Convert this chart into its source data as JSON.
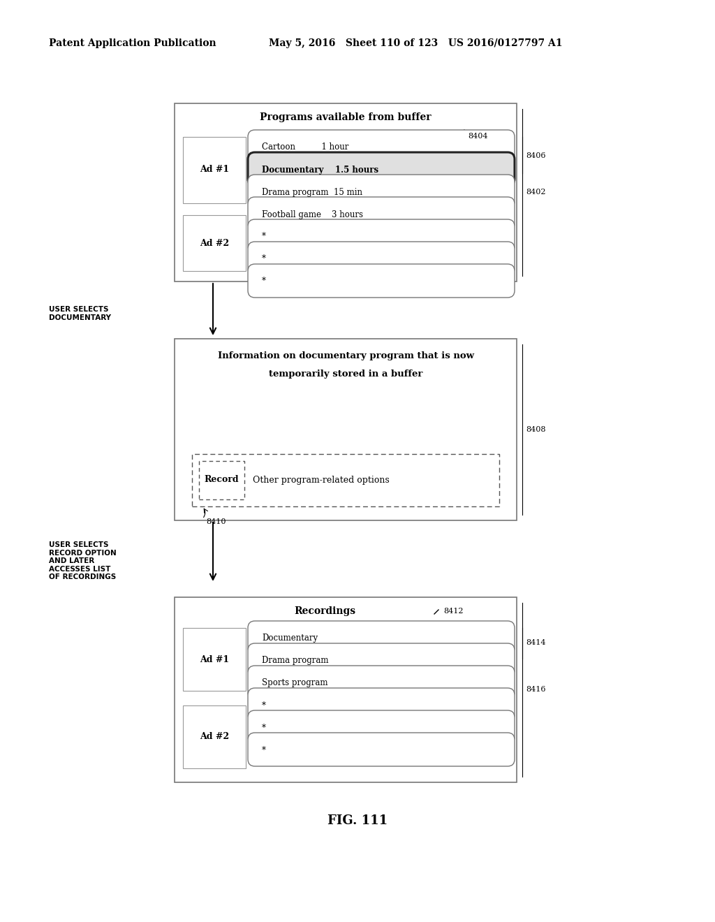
{
  "bg_color": "#ffffff",
  "header_left": "Patent Application Publication",
  "header_mid": "May 5, 2016   Sheet 110 of 123   US 2016/0127797 A1",
  "fig_label": "FIG. 111",
  "box1": {
    "title": "Programs available from buffer",
    "ref_main": "8402",
    "ref_title_bar": "8404",
    "ref_list": "8406",
    "ad1_label": "Ad #1",
    "ad2_label": "Ad #2",
    "items": [
      {
        "text": "Cartoon          1 hour",
        "selected": false
      },
      {
        "text": "Documentary    1.5 hours",
        "selected": true
      },
      {
        "text": "Drama program  15 min",
        "selected": false
      },
      {
        "text": "Football game    3 hours",
        "selected": false
      },
      {
        "text": "*",
        "selected": false
      },
      {
        "text": "*",
        "selected": false
      },
      {
        "text": "*",
        "selected": false
      }
    ]
  },
  "box2": {
    "title1": "Information on documentary program that is now",
    "title2": "temporarily stored in a buffer",
    "ref_main": "8408",
    "ref_inner": "8410",
    "record_label": "Record",
    "other_label": "Other program-related options"
  },
  "box3": {
    "title": "Recordings",
    "ref_main": "8416",
    "ref_title": "8412",
    "ref_list": "8414",
    "ad1_label": "Ad #1",
    "ad2_label": "Ad #2",
    "items": [
      {
        "text": "Documentary",
        "selected": false
      },
      {
        "text": "Drama program",
        "selected": false
      },
      {
        "text": "Sports program",
        "selected": false
      },
      {
        "text": "*",
        "selected": false
      },
      {
        "text": "*",
        "selected": false
      },
      {
        "text": "*",
        "selected": false
      }
    ]
  }
}
